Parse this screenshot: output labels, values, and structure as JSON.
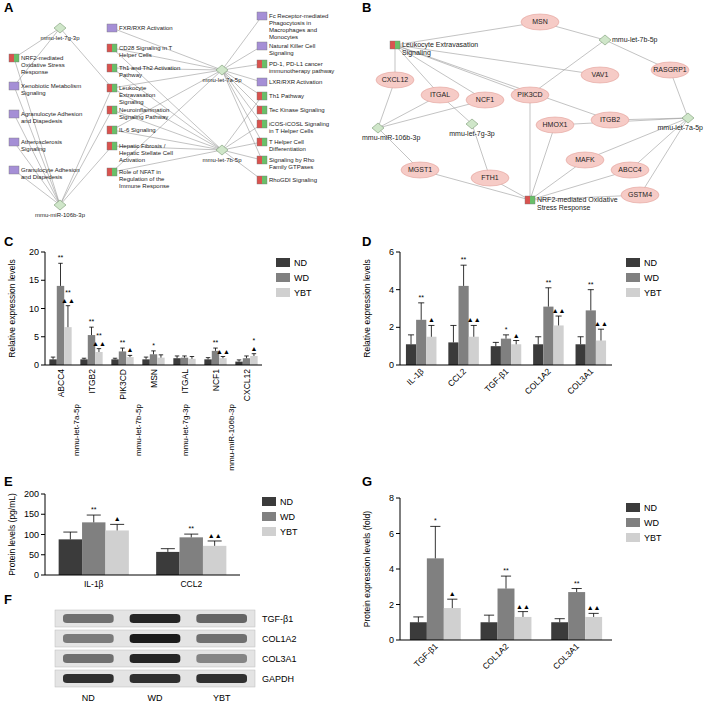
{
  "network_a": {
    "panel_label": "A",
    "nodes": [
      {
        "label": "mmu-let-7g-3p",
        "kind": "mirna"
      },
      {
        "label": "mmu-let-7a-5p",
        "kind": "mirna"
      },
      {
        "label": "mmu-miR-106b-3p",
        "kind": "mirna"
      },
      {
        "label": "mmu-let-7b-5p",
        "kind": "mirna"
      },
      {
        "label": "FXR/RXR Activation",
        "kind": "pathway",
        "color": "#a58fd6"
      },
      {
        "label": "Fc Receptor-mediated Phagocytosis in Macrophages and Monocytes",
        "kind": "pathway",
        "color": "#a58fd6"
      },
      {
        "label": "NRF2-mediated Oxidative Stress Response",
        "kind": "pathway",
        "color": [
          "#d9534f",
          "#6abf69"
        ]
      },
      {
        "label": "CD28 Signaling in T Helper Cells",
        "kind": "pathway",
        "color": [
          "#d9534f",
          "#6abf69"
        ]
      },
      {
        "label": "Natural Killer Cell Signaling",
        "kind": "pathway",
        "color": "#a58fd6"
      },
      {
        "label": "Xenobiotic Metabolism Signaling",
        "kind": "pathway",
        "color": "#a58fd6"
      },
      {
        "label": "Th1 and Th2 Activation Pathway",
        "kind": "pathway",
        "color": [
          "#d9534f",
          "#6abf69"
        ]
      },
      {
        "label": "PD-1, PD-L1 cancer immunotherapy pathway",
        "kind": "pathway",
        "color": [
          "#d9534f",
          "#6abf69"
        ]
      },
      {
        "label": "Agranulocyte Adhesion and Diapedesis",
        "kind": "pathway",
        "color": "#a58fd6"
      },
      {
        "label": "Leukocyte Extravasation Signaling",
        "kind": "pathway",
        "color": [
          "#d9534f",
          "#6abf69"
        ]
      },
      {
        "label": "LXR/RXR Activation",
        "kind": "pathway",
        "color": "#a58fd6"
      },
      {
        "label": "Neuroinflammation Signaling Pathway",
        "kind": "pathway",
        "color": [
          "#d9534f",
          "#6abf69"
        ]
      },
      {
        "label": "Th1 Pathway",
        "kind": "pathway",
        "color": [
          "#d9534f",
          "#6abf69"
        ]
      },
      {
        "label": "Atherosclerosis Signaling",
        "kind": "pathway",
        "color": "#a58fd6"
      },
      {
        "label": "Tec Kinase Signaling",
        "kind": "pathway",
        "color": [
          "#d9534f",
          "#6abf69"
        ]
      },
      {
        "label": "IL-6 Signaling",
        "kind": "pathway",
        "color": [
          "#d9534f",
          "#6abf69"
        ]
      },
      {
        "label": "iCOS-iCOSL Signaling in T Helper Cells",
        "kind": "pathway",
        "color": [
          "#d9534f",
          "#6abf69"
        ]
      },
      {
        "label": "Granulocyte Adhesion and Diapedesis",
        "kind": "pathway",
        "color": "#a58fd6"
      },
      {
        "label": "Hepatic Fibrosis / Hepatic Stellate Cell Activation",
        "kind": "pathway",
        "color": [
          "#d9534f",
          "#6abf69"
        ]
      },
      {
        "label": "T Helper Cell Differentiation",
        "kind": "pathway",
        "color": [
          "#d9534f",
          "#6abf69"
        ]
      },
      {
        "label": "Signaling by Rho Family GTPases",
        "kind": "pathway",
        "color": [
          "#d9534f",
          "#6abf69"
        ]
      },
      {
        "label": "Role of NFAT in Regulation of the Immune Response",
        "kind": "pathway",
        "color": [
          "#d9534f",
          "#6abf69"
        ]
      },
      {
        "label": "RhoGDI Signaling",
        "kind": "pathway",
        "color": [
          "#d9534f",
          "#6abf69"
        ]
      }
    ],
    "edges": [
      [
        1,
        4
      ],
      [
        1,
        5
      ],
      [
        1,
        7
      ],
      [
        1,
        8
      ],
      [
        1,
        10
      ],
      [
        1,
        11
      ],
      [
        1,
        13
      ],
      [
        1,
        14
      ],
      [
        1,
        16
      ],
      [
        1,
        18
      ],
      [
        1,
        20
      ],
      [
        1,
        23
      ],
      [
        1,
        19
      ],
      [
        1,
        25
      ],
      [
        1,
        24
      ],
      [
        3,
        7
      ],
      [
        3,
        10
      ],
      [
        3,
        13
      ],
      [
        3,
        15
      ],
      [
        3,
        19
      ],
      [
        3,
        22
      ],
      [
        3,
        20
      ],
      [
        3,
        23
      ],
      [
        3,
        24
      ],
      [
        3,
        26
      ],
      [
        3,
        25
      ],
      [
        3,
        16
      ],
      [
        0,
        6
      ],
      [
        0,
        9
      ],
      [
        0,
        13
      ],
      [
        2,
        6
      ],
      [
        2,
        9
      ],
      [
        2,
        12
      ],
      [
        2,
        17
      ],
      [
        2,
        21
      ],
      [
        2,
        13
      ],
      [
        2,
        15
      ],
      [
        2,
        22
      ]
    ]
  },
  "network_b": {
    "panel_label": "B",
    "nodes": [
      {
        "label": "Leukocyte Extravasation Signaling",
        "kind": "pathway",
        "color": [
          "#d9534f",
          "#6abf69"
        ]
      },
      {
        "label": "NRF2-mediated Oxidative Stress Response",
        "kind": "pathway",
        "color": [
          "#d9534f",
          "#6abf69"
        ]
      },
      {
        "label": "mmu-let-7b-5p",
        "kind": "mirna"
      },
      {
        "label": "mmu-let-7a-5p",
        "kind": "mirna"
      },
      {
        "label": "mmu-miR-106b-3p",
        "kind": "mirna"
      },
      {
        "label": "mmu-let-7g-3p",
        "kind": "mirna"
      },
      {
        "label": "MSN",
        "kind": "gene"
      },
      {
        "label": "CXCL12",
        "kind": "gene"
      },
      {
        "label": "ITGAL",
        "kind": "gene"
      },
      {
        "label": "NCF1",
        "kind": "gene"
      },
      {
        "label": "PIK3CD",
        "kind": "gene"
      },
      {
        "label": "VAV1",
        "kind": "gene"
      },
      {
        "label": "RASGRP1",
        "kind": "gene"
      },
      {
        "label": "HMOX1",
        "kind": "gene"
      },
      {
        "label": "ITGB2",
        "kind": "gene"
      },
      {
        "label": "MAFK",
        "kind": "gene"
      },
      {
        "label": "ABCC4",
        "kind": "gene"
      },
      {
        "label": "MGST1",
        "kind": "gene"
      },
      {
        "label": "FTH1",
        "kind": "gene"
      },
      {
        "label": "GSTM4",
        "kind": "gene"
      }
    ],
    "edges": [
      [
        0,
        6
      ],
      [
        0,
        7
      ],
      [
        0,
        8
      ],
      [
        0,
        9
      ],
      [
        0,
        10
      ],
      [
        0,
        11
      ],
      [
        0,
        14
      ],
      [
        1,
        17
      ],
      [
        1,
        18
      ],
      [
        1,
        13
      ],
      [
        1,
        15
      ],
      [
        1,
        16
      ],
      [
        1,
        19
      ],
      [
        1,
        10
      ],
      [
        2,
        6
      ],
      [
        2,
        12
      ],
      [
        2,
        10
      ],
      [
        3,
        12
      ],
      [
        3,
        14
      ],
      [
        3,
        16
      ],
      [
        3,
        15
      ],
      [
        3,
        19
      ],
      [
        3,
        13
      ],
      [
        4,
        7
      ],
      [
        4,
        8
      ],
      [
        4,
        9
      ],
      [
        4,
        17
      ],
      [
        5,
        8
      ],
      [
        5,
        18
      ]
    ]
  },
  "blot": {
    "panel_label": "F",
    "columns": [
      "ND",
      "WD",
      "YBT"
    ],
    "rows": [
      {
        "label": "TGF-β1",
        "intensity": [
          0.55,
          0.9,
          0.6
        ]
      },
      {
        "label": "COL1A2",
        "intensity": [
          0.5,
          0.95,
          0.55
        ]
      },
      {
        "label": "COL3A1",
        "intensity": [
          0.55,
          0.9,
          0.45
        ]
      },
      {
        "label": "GAPDH",
        "intensity": [
          0.85,
          0.85,
          0.85
        ]
      }
    ]
  },
  "chart_data": [
    {
      "panel_label": "C",
      "type": "bar",
      "ylabel": "Relative expression levels",
      "categories": [
        "ABCC4",
        "ITGB2",
        "PIK3CD",
        "MSN",
        "ITGAL",
        "NCF1",
        "CXCL12"
      ],
      "groups": [
        {
          "label": "mmu-let-7a-5p",
          "span": [
            0,
            1
          ]
        },
        {
          "label": "mmu-let-7b-5p",
          "span": [
            2,
            3
          ]
        },
        {
          "label": "mmu-let-7g-3p",
          "span": [
            4,
            4
          ]
        },
        {
          "label": "mmu-miR-106b-3p",
          "span": [
            5,
            6
          ]
        }
      ],
      "series": [
        {
          "name": "ND",
          "color": "#3b3b3b",
          "values": [
            1.0,
            1.0,
            1.0,
            1.0,
            1.2,
            1.0,
            0.6
          ],
          "errors": [
            0.4,
            0.2,
            0.2,
            0.4,
            0.4,
            0.3,
            0.3
          ],
          "annotations": [
            [],
            [],
            [],
            [],
            [],
            [],
            []
          ]
        },
        {
          "name": "WD",
          "color": "#808080",
          "values": [
            14.0,
            5.3,
            2.4,
            1.9,
            1.3,
            2.5,
            1.2
          ],
          "errors": [
            4.0,
            1.4,
            0.6,
            0.6,
            0.3,
            0.5,
            0.4
          ],
          "annotations": [
            [
              "**"
            ],
            [
              "**"
            ],
            [
              "**"
            ],
            [
              "*"
            ],
            [],
            [
              "**"
            ],
            []
          ]
        },
        {
          "name": "YBT",
          "color": "#d0d0d0",
          "values": [
            6.7,
            2.3,
            1.4,
            1.3,
            1.1,
            1.2,
            1.6
          ],
          "errors": [
            3.8,
            0.6,
            0.3,
            0.5,
            0.4,
            0.3,
            0.4
          ],
          "annotations": [
            [
              "**",
              "▲▲"
            ],
            [
              "**",
              "▲▲"
            ],
            [
              "▲"
            ],
            [],
            [],
            [
              "▲▲"
            ],
            [
              "*",
              "▲"
            ]
          ]
        }
      ],
      "ylim": [
        0,
        20
      ],
      "yticks": [
        0,
        5,
        10,
        15,
        20
      ],
      "grid": false,
      "legend": "right"
    },
    {
      "panel_label": "D",
      "type": "bar",
      "ylabel": "Relative expression levels",
      "categories": [
        "IL-1β",
        "CCL2",
        "TGF-β1",
        "COL1A2",
        "COL3A1"
      ],
      "series": [
        {
          "name": "ND",
          "color": "#3b3b3b",
          "values": [
            1.1,
            1.2,
            1.0,
            1.1,
            1.1
          ],
          "errors": [
            0.5,
            0.9,
            0.2,
            0.4,
            0.4
          ],
          "annotations": [
            [],
            [],
            [],
            [],
            []
          ]
        },
        {
          "name": "WD",
          "color": "#808080",
          "values": [
            2.4,
            4.2,
            1.4,
            3.1,
            2.9
          ],
          "errors": [
            0.9,
            1.1,
            0.2,
            1.0,
            1.1
          ],
          "annotations": [
            [
              "**"
            ],
            [
              "**"
            ],
            [
              "*"
            ],
            [
              "**"
            ],
            [
              "**"
            ]
          ]
        },
        {
          "name": "YBT",
          "color": "#d0d0d0",
          "values": [
            1.5,
            1.5,
            1.1,
            2.1,
            1.3
          ],
          "errors": [
            0.6,
            0.6,
            0.2,
            0.5,
            0.6
          ],
          "annotations": [
            [
              "▲"
            ],
            [
              "▲▲"
            ],
            [
              "▲"
            ],
            [
              "▲▲"
            ],
            [
              "▲▲"
            ]
          ]
        }
      ],
      "ylim": [
        0,
        6
      ],
      "yticks": [
        0,
        2,
        4,
        6
      ],
      "grid": false,
      "legend": "right"
    },
    {
      "panel_label": "E",
      "type": "bar",
      "ylabel": "Protein levels (pg/mL)",
      "categories": [
        "IL-1β",
        "CCL2"
      ],
      "series": [
        {
          "name": "ND",
          "color": "#3b3b3b",
          "values": [
            88,
            57
          ],
          "errors": [
            18,
            8
          ],
          "annotations": [
            [],
            []
          ]
        },
        {
          "name": "WD",
          "color": "#808080",
          "values": [
            130,
            93
          ],
          "errors": [
            18,
            8
          ],
          "annotations": [
            [
              "**"
            ],
            [
              "**"
            ]
          ]
        },
        {
          "name": "YBT",
          "color": "#d0d0d0",
          "values": [
            110,
            72
          ],
          "errors": [
            15,
            12
          ],
          "annotations": [
            [
              "▲"
            ],
            [
              "▲▲"
            ]
          ]
        }
      ],
      "ylim": [
        0,
        200
      ],
      "yticks": [
        0,
        50,
        100,
        150,
        200
      ],
      "grid": false,
      "legend": "right"
    },
    {
      "panel_label": "G",
      "type": "bar",
      "ylabel": "Protein expression levels (fold)",
      "categories": [
        "TGF-β1",
        "COL1A2",
        "COL3A1"
      ],
      "series": [
        {
          "name": "ND",
          "color": "#3b3b3b",
          "values": [
            1.0,
            1.0,
            1.0
          ],
          "errors": [
            0.3,
            0.4,
            0.2
          ],
          "annotations": [
            [],
            [],
            []
          ]
        },
        {
          "name": "WD",
          "color": "#808080",
          "values": [
            4.6,
            2.9,
            2.7
          ],
          "errors": [
            1.8,
            0.7,
            0.2
          ],
          "annotations": [
            [
              "*"
            ],
            [
              "**"
            ],
            [
              "**"
            ]
          ]
        },
        {
          "name": "YBT",
          "color": "#d0d0d0",
          "values": [
            1.8,
            1.3,
            1.3
          ],
          "errors": [
            0.5,
            0.3,
            0.2
          ],
          "annotations": [
            [
              "▲"
            ],
            [
              "▲▲"
            ],
            [
              "▲▲"
            ]
          ]
        }
      ],
      "ylim": [
        0,
        8
      ],
      "yticks": [
        0,
        2,
        4,
        6,
        8
      ],
      "grid": false,
      "legend": "right"
    }
  ]
}
